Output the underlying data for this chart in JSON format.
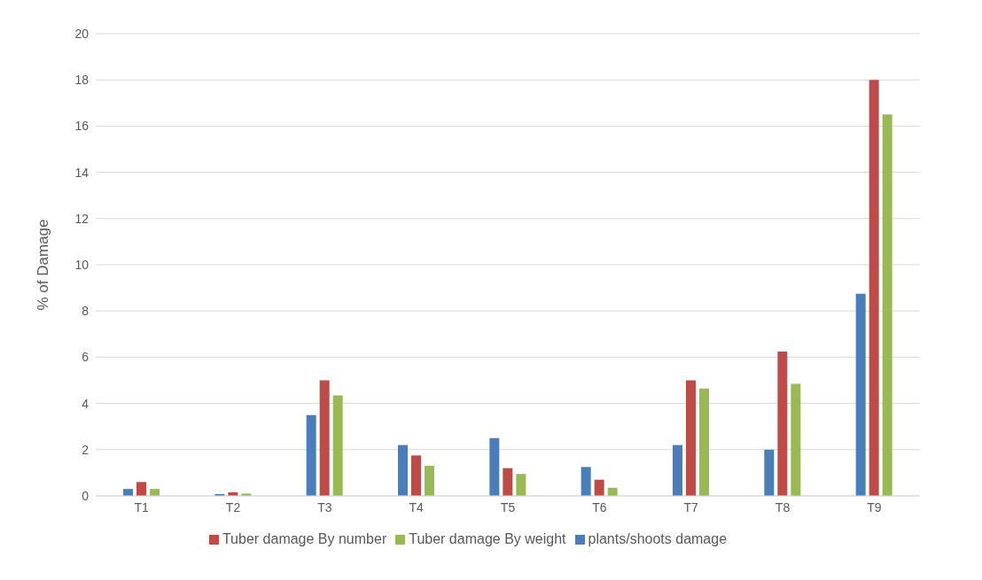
{
  "chart_data": {
    "type": "bar",
    "ylabel": "% of Damage",
    "categories": [
      "T1",
      "T2",
      "T3",
      "T4",
      "T5",
      "T6",
      "T7",
      "T8",
      "T9"
    ],
    "series": [
      {
        "name": "plants/shoots damage",
        "color": "#4a7ebb",
        "values": [
          0.3,
          0.08,
          3.5,
          2.2,
          2.5,
          1.25,
          2.2,
          2.0,
          8.75
        ]
      },
      {
        "name": "Tuber damage By number",
        "color": "#be4b48",
        "values": [
          0.6,
          0.15,
          5.0,
          1.75,
          1.2,
          0.7,
          5.0,
          6.25,
          18.0
        ]
      },
      {
        "name": "Tuber damage By weight",
        "color": "#98b954",
        "values": [
          0.3,
          0.1,
          4.35,
          1.3,
          0.95,
          0.35,
          4.65,
          4.85,
          16.5
        ]
      }
    ],
    "ylim": [
      0,
      20
    ],
    "yticks": [
      0,
      2,
      4,
      6,
      8,
      10,
      12,
      14,
      16,
      18,
      20
    ],
    "grid": "y",
    "legend": "bottom"
  }
}
